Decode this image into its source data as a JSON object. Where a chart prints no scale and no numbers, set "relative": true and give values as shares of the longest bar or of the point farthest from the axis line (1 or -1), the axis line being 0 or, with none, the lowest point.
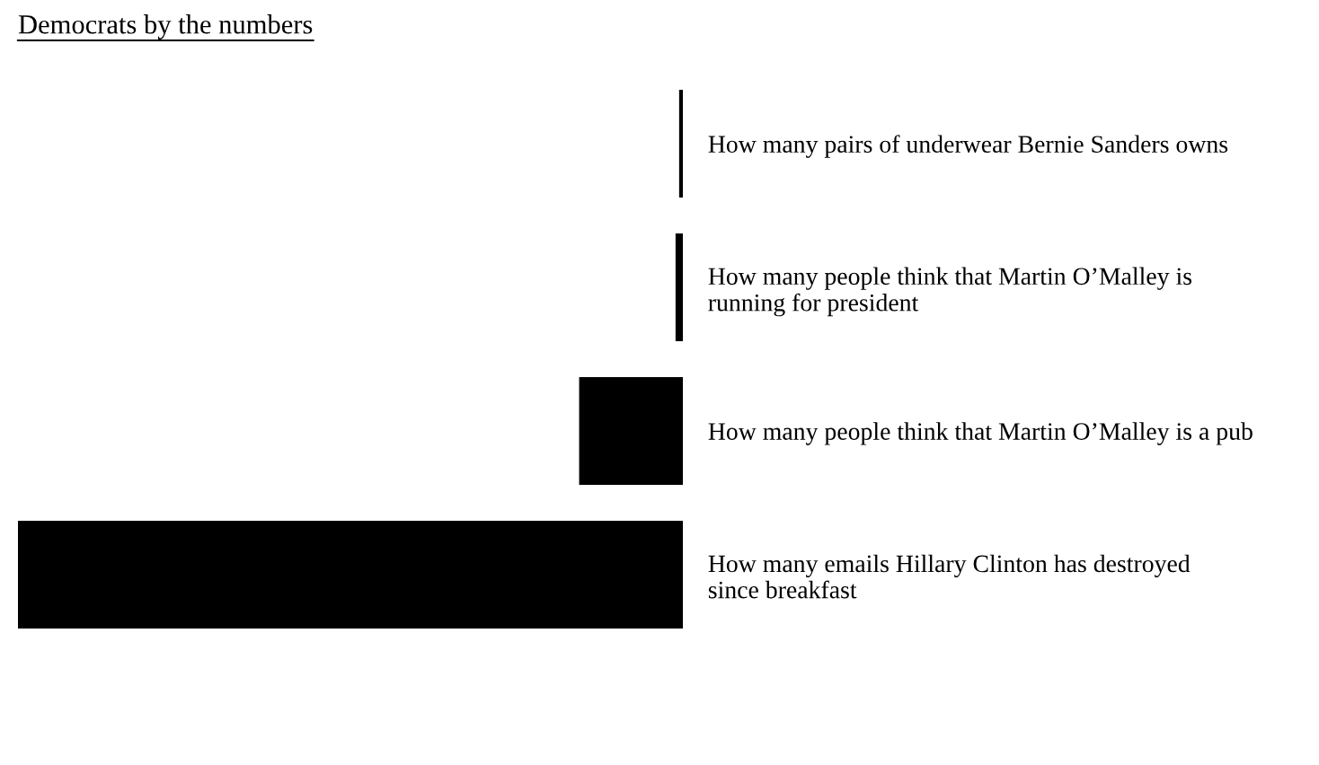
{
  "chart_data": {
    "type": "bar",
    "orientation": "horizontal",
    "relative": true,
    "title": "Democrats by the numbers",
    "categories": [
      "How many pairs of underwear Bernie Sanders owns",
      "How many people think that Martin O’Malley is\nrunning for president",
      "How many people think that Martin O’Malley is a pub",
      "How many emails Hillary Clinton has destroyed\nsince breakfast"
    ],
    "values": [
      0.0056,
      0.011,
      0.156,
      1
    ],
    "color": "#000000",
    "grid": false,
    "legend": false
  }
}
